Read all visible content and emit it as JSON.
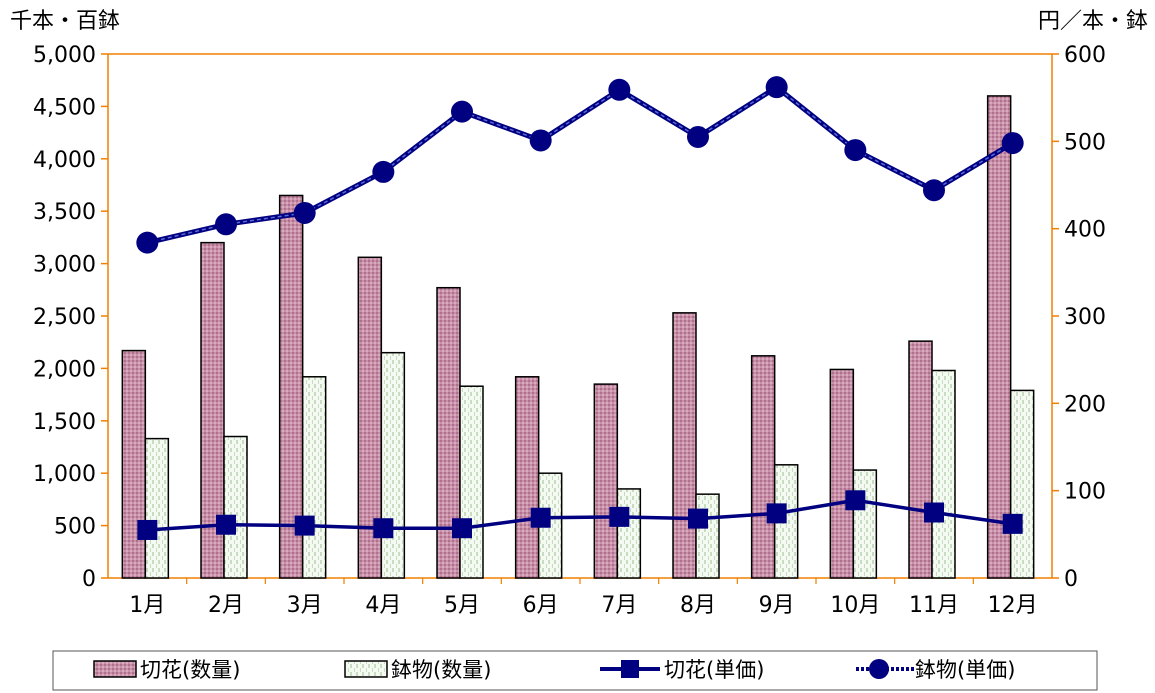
{
  "chart_data": {
    "type": "bar",
    "combo": "bar + line (dual axis)",
    "categories": [
      "1月",
      "2月",
      "3月",
      "4月",
      "5月",
      "6月",
      "7月",
      "8月",
      "9月",
      "10月",
      "11月",
      "12月"
    ],
    "left_axis": {
      "unit": "千本・百鉢",
      "ylim": [
        0,
        5000
      ],
      "ticks": [
        "0",
        "500",
        "1,000",
        "1,500",
        "2,000",
        "2,500",
        "3,000",
        "3,500",
        "4,000",
        "4,500",
        "5,000"
      ]
    },
    "right_axis": {
      "unit": "円／本・鉢",
      "ylim": [
        0,
        600
      ],
      "ticks": [
        "0",
        "100",
        "200",
        "300",
        "400",
        "500",
        "600"
      ]
    },
    "series": [
      {
        "name": "切花(数量)",
        "type": "bar",
        "axis": "left",
        "color": "#c08aa3",
        "values": [
          2170,
          3200,
          3650,
          3060,
          2770,
          1920,
          1850,
          2530,
          2120,
          1990,
          2260,
          4600
        ]
      },
      {
        "name": "鉢物(数量)",
        "type": "bar",
        "axis": "left",
        "color": "#e9f3e4",
        "values": [
          1330,
          1350,
          1920,
          2150,
          1830,
          1000,
          850,
          800,
          1080,
          1030,
          1980,
          1790
        ]
      },
      {
        "name": "切花(単価)",
        "type": "line",
        "axis": "right",
        "color": "#000080",
        "marker": "square",
        "values": [
          55,
          61,
          60,
          57,
          57,
          69,
          70,
          68,
          74,
          89,
          75,
          62
        ]
      },
      {
        "name": "鉢物(単価)",
        "type": "line",
        "axis": "right",
        "color": "#000080",
        "marker": "circle",
        "values": [
          384,
          405,
          418,
          465,
          534,
          501,
          559,
          505,
          562,
          490,
          444,
          498
        ]
      }
    ],
    "grid": false,
    "legend": "bottom"
  }
}
